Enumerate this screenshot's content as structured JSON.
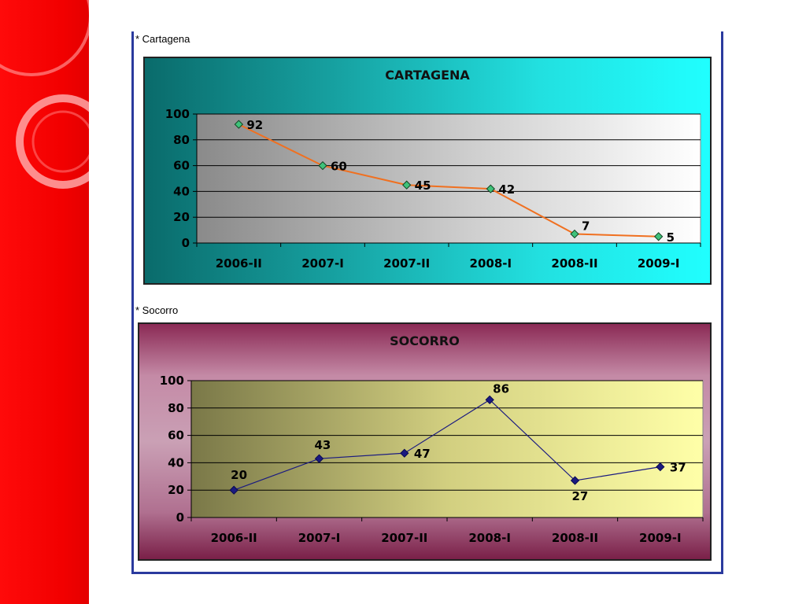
{
  "captions": {
    "first": "* Cartagena",
    "second": "* Socorro"
  },
  "colors": {
    "side_band": "#f20000",
    "frame": "#2a3a9e",
    "line1": "#f07020",
    "marker1": "#3fc27a",
    "line2": "#1a1a80",
    "marker2": "#1a1a80"
  },
  "chart_data": [
    {
      "type": "line",
      "title": "CARTAGENA",
      "categories": [
        "2006-II",
        "2007-I",
        "2007-II",
        "2008-I",
        "2008-II",
        "2009-I"
      ],
      "series": [
        {
          "values": [
            92,
            60,
            45,
            42,
            7,
            5
          ]
        }
      ],
      "ylim": [
        0,
        100
      ],
      "yticks": [
        0,
        20,
        40,
        60,
        80,
        100
      ],
      "grid": true,
      "xlabel": "",
      "ylabel": ""
    },
    {
      "type": "line",
      "title": "SOCORRO",
      "categories": [
        "2006-II",
        "2007-I",
        "2007-II",
        "2008-I",
        "2008-II",
        "2009-I"
      ],
      "series": [
        {
          "values": [
            20,
            43,
            47,
            86,
            27,
            37
          ]
        }
      ],
      "ylim": [
        0,
        100
      ],
      "yticks": [
        0,
        20,
        40,
        60,
        80,
        100
      ],
      "grid": true,
      "xlabel": "",
      "ylabel": ""
    }
  ]
}
